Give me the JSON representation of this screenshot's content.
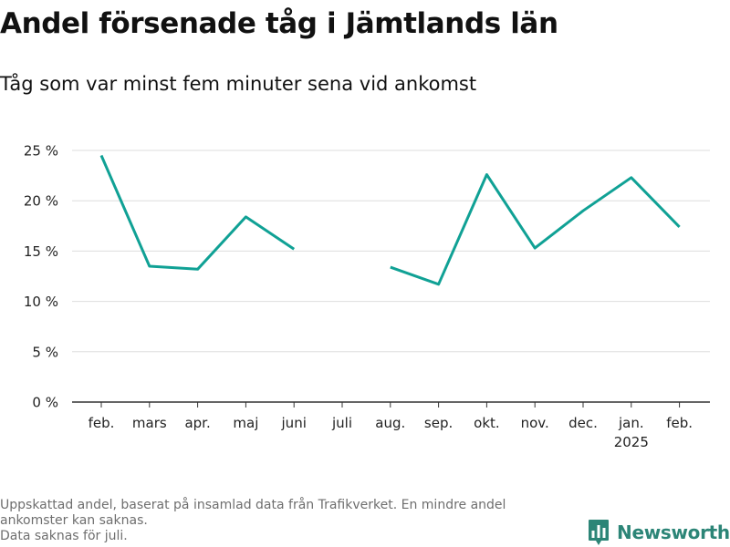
{
  "header": {
    "title": "Andel försenade tåg i Jämtlands län",
    "subtitle": "Tåg som var minst fem minuter sena vid ankomst"
  },
  "chart_data": {
    "type": "line",
    "title": "Andel försenade tåg i Jämtlands län",
    "subtitle": "Tåg som var minst fem minuter sena vid ankomst",
    "categories": [
      "feb.",
      "mars",
      "apr.",
      "maj",
      "juni",
      "juli",
      "aug.",
      "sep.",
      "okt.",
      "nov.",
      "dec.",
      "jan.",
      "feb."
    ],
    "category_sublabels": [
      "",
      "",
      "",
      "",
      "",
      "",
      "",
      "",
      "",
      "",
      "",
      "2025",
      ""
    ],
    "values": [
      24.5,
      13.5,
      13.2,
      18.4,
      15.2,
      null,
      13.4,
      11.7,
      22.6,
      15.3,
      19.0,
      22.3,
      17.4
    ],
    "y_ticks": [
      0,
      5,
      10,
      15,
      20,
      25
    ],
    "y_tick_labels": [
      "0 %",
      "5 %",
      "10 %",
      "15 %",
      "20 %",
      "25 %"
    ],
    "ylim": [
      0,
      27.5
    ],
    "grid": "horizontal",
    "line_color": "#10a195",
    "xlabel": "",
    "ylabel": ""
  },
  "footnote": {
    "line1": "Uppskattad andel, baserat på insamlad data från Trafikverket. En mindre andel ankomster kan saknas.",
    "line2": "Data saknas för juli."
  },
  "brand": {
    "name": "Newsworthy",
    "icon": "newsworthy-logo-icon",
    "color": "#2c8577"
  }
}
